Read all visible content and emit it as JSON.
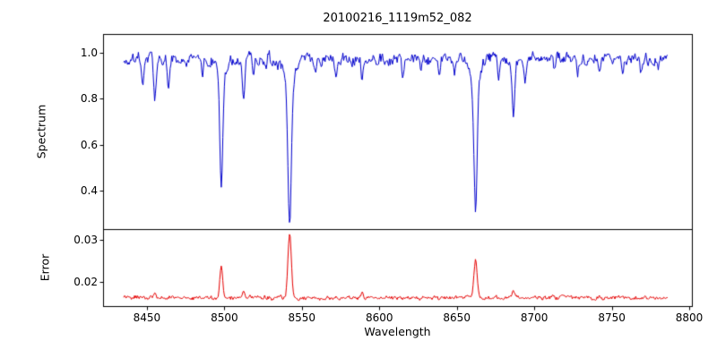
{
  "chart_data": [
    {
      "type": "line",
      "panel": "spectrum",
      "title": "20100216_1119m52_082",
      "ylabel": "Spectrum",
      "color": "#0000cd",
      "xlim": [
        8422,
        8802
      ],
      "ylim": [
        0.23,
        1.08
      ],
      "yticks": [
        "1.0",
        "0.8",
        "0.6",
        "0.4"
      ],
      "x_start": 8435,
      "x_end": 8786,
      "step": 0.5,
      "continuum": 0.975,
      "noise_amplitude": 0.015,
      "grid": false,
      "legend": false,
      "absorption_lines": [
        {
          "wavelength": 8447.5,
          "depth": 0.1,
          "sigma": 0.7
        },
        {
          "wavelength": 8455.0,
          "depth": 0.2,
          "sigma": 0.8
        },
        {
          "wavelength": 8464.0,
          "depth": 0.13,
          "sigma": 0.7
        },
        {
          "wavelength": 8486.0,
          "depth": 0.08,
          "sigma": 0.6
        },
        {
          "wavelength": 8498.0,
          "depth": 0.47,
          "sigma": 0.9,
          "wing": 0.18
        },
        {
          "wavelength": 8512.5,
          "depth": 0.17,
          "sigma": 0.8
        },
        {
          "wavelength": 8518.5,
          "depth": 0.09,
          "sigma": 0.6
        },
        {
          "wavelength": 8527.0,
          "depth": 0.06,
          "sigma": 0.6
        },
        {
          "wavelength": 8542.1,
          "depth": 0.6,
          "sigma": 1.1,
          "wing": 0.18
        },
        {
          "wavelength": 8559.0,
          "depth": 0.07,
          "sigma": 0.7
        },
        {
          "wavelength": 8572.0,
          "depth": 0.06,
          "sigma": 0.6
        },
        {
          "wavelength": 8589.0,
          "depth": 0.09,
          "sigma": 0.7
        },
        {
          "wavelength": 8599.0,
          "depth": 0.05,
          "sigma": 0.6
        },
        {
          "wavelength": 8615.0,
          "depth": 0.08,
          "sigma": 0.7
        },
        {
          "wavelength": 8627.0,
          "depth": 0.06,
          "sigma": 0.6
        },
        {
          "wavelength": 8638.5,
          "depth": 0.06,
          "sigma": 0.6
        },
        {
          "wavelength": 8648.5,
          "depth": 0.05,
          "sigma": 0.6
        },
        {
          "wavelength": 8662.1,
          "depth": 0.55,
          "sigma": 1.0,
          "wing": 0.19
        },
        {
          "wavelength": 8677.0,
          "depth": 0.1,
          "sigma": 0.7
        },
        {
          "wavelength": 8686.5,
          "depth": 0.24,
          "sigma": 0.9,
          "wing": 0.06
        },
        {
          "wavelength": 8694.0,
          "depth": 0.08,
          "sigma": 0.6
        },
        {
          "wavelength": 8713.0,
          "depth": 0.06,
          "sigma": 0.6
        },
        {
          "wavelength": 8728.0,
          "depth": 0.07,
          "sigma": 0.7
        },
        {
          "wavelength": 8742.0,
          "depth": 0.05,
          "sigma": 0.6
        },
        {
          "wavelength": 8757.0,
          "depth": 0.08,
          "sigma": 0.7
        },
        {
          "wavelength": 8769.0,
          "depth": 0.06,
          "sigma": 0.6
        },
        {
          "wavelength": 8780.0,
          "depth": 0.05,
          "sigma": 0.6
        }
      ]
    },
    {
      "type": "line",
      "panel": "error",
      "xlabel": "Wavelength",
      "ylabel": "Error",
      "color": "#e60000",
      "xlim": [
        8422,
        8802
      ],
      "ylim": [
        0.0142,
        0.0324
      ],
      "yticks": [
        "0.02",
        "0.03"
      ],
      "xticks": [
        8450,
        8500,
        8550,
        8600,
        8650,
        8700,
        8750,
        8800
      ],
      "baseline": 0.0163,
      "noise_amplitude": 0.0005,
      "grid": false,
      "legend": false,
      "peaks": [
        {
          "wavelength": 8455.0,
          "height": 0.001,
          "sigma": 0.8
        },
        {
          "wavelength": 8498.0,
          "height": 0.0076,
          "sigma": 0.9
        },
        {
          "wavelength": 8512.5,
          "height": 0.0018,
          "sigma": 0.8
        },
        {
          "wavelength": 8542.1,
          "height": 0.015,
          "sigma": 1.1
        },
        {
          "wavelength": 8589.0,
          "height": 0.0012,
          "sigma": 0.7
        },
        {
          "wavelength": 8662.1,
          "height": 0.0092,
          "sigma": 1.0
        },
        {
          "wavelength": 8686.5,
          "height": 0.002,
          "sigma": 0.8
        }
      ]
    }
  ]
}
